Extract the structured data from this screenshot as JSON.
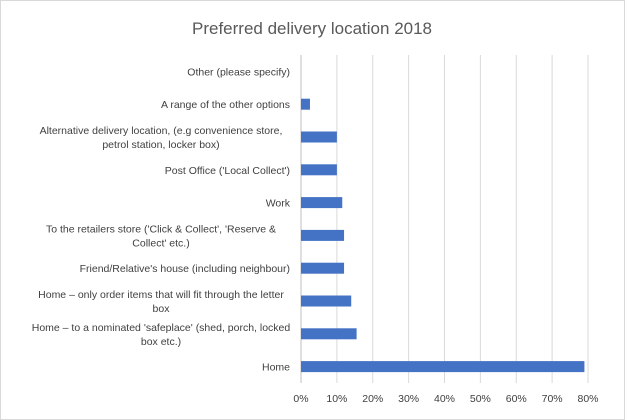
{
  "chart_data": {
    "type": "bar",
    "orientation": "horizontal",
    "title": "Preferred delivery location 2018",
    "xlabel": "",
    "ylabel": "",
    "xlim": [
      0,
      80
    ],
    "x_ticks": [
      "0%",
      "10%",
      "20%",
      "30%",
      "40%",
      "50%",
      "60%",
      "70%",
      "80%"
    ],
    "grid": true,
    "legend": "none",
    "bar_color": "#4472c4",
    "categories": [
      [
        "Other (please specify)"
      ],
      [
        "A range of the other options"
      ],
      [
        "Alternative delivery location, (e.g convenience store,",
        "petrol station, locker box)"
      ],
      [
        "Post Office ('Local Collect')"
      ],
      [
        "Work"
      ],
      [
        "To the retailers store ('Click & Collect', 'Reserve &",
        "Collect' etc.)"
      ],
      [
        "Friend/Relative's house (including neighbour)"
      ],
      [
        "Home – only order items that will fit through the letter",
        "box"
      ],
      [
        "Home – to a nominated 'safeplace' (shed, porch, locked",
        "box etc.)"
      ],
      [
        "Home"
      ]
    ],
    "values": [
      0,
      2.5,
      10,
      10,
      11.5,
      12,
      12,
      14,
      15.5,
      79
    ],
    "unit": "%"
  }
}
